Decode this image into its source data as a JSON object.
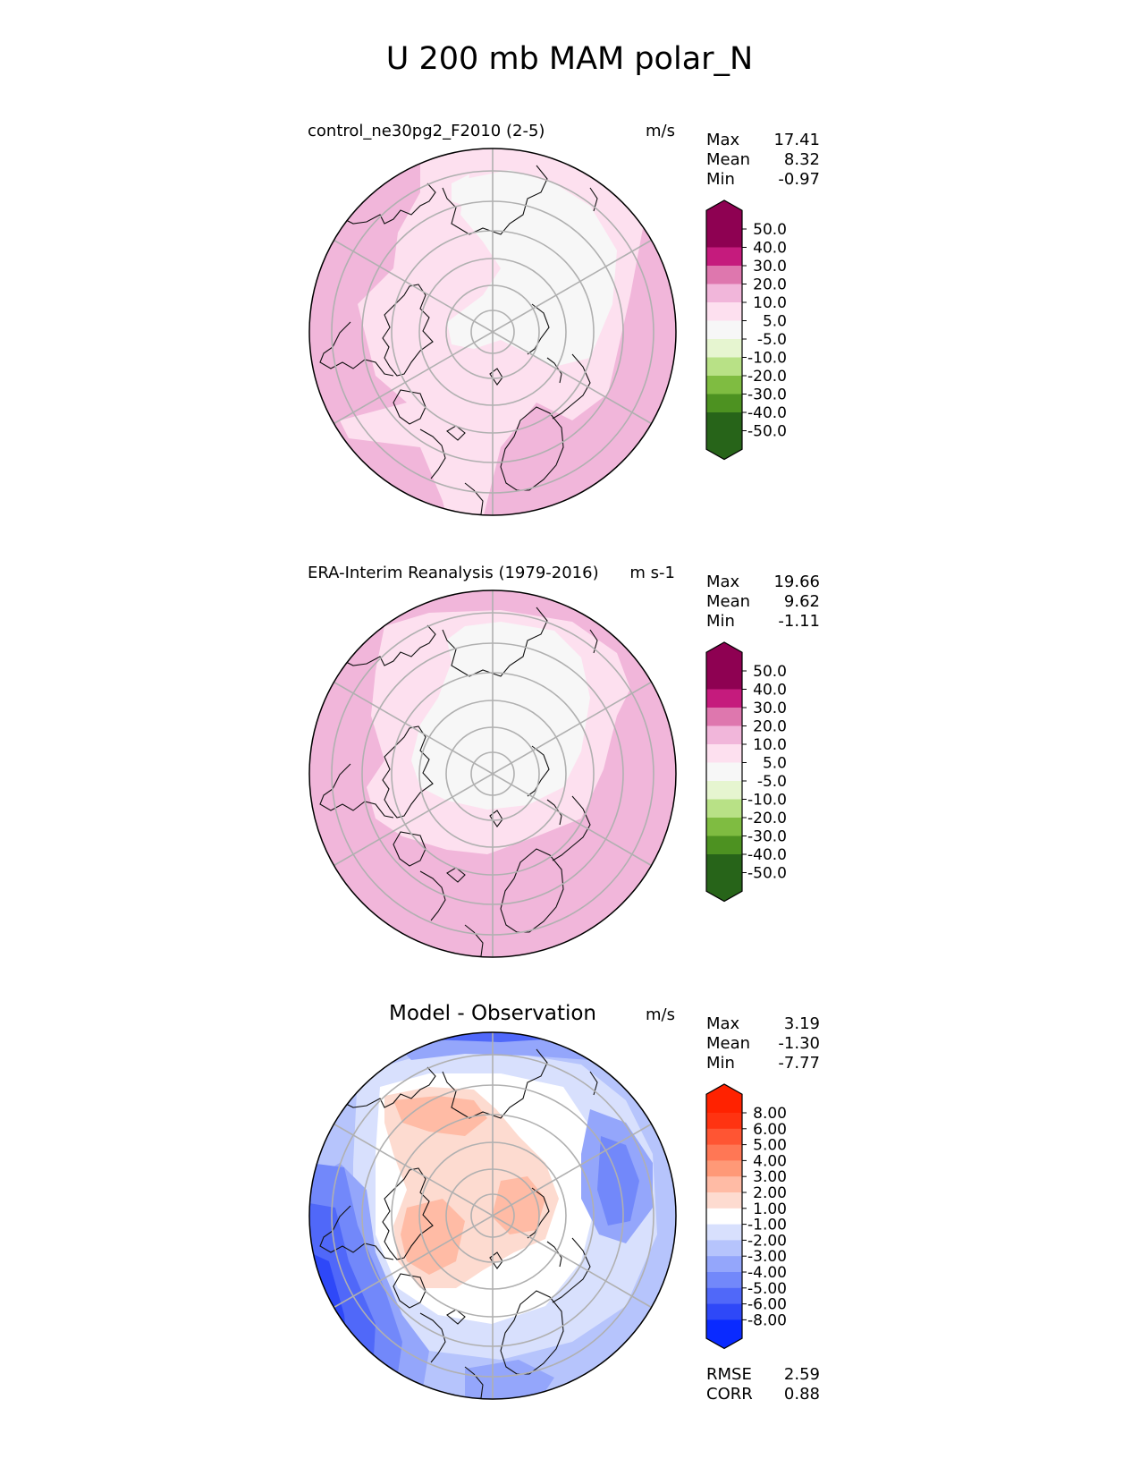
{
  "title": "U 200 mb MAM polar_N",
  "panels": [
    {
      "title": "control_ne30pg2_F2010 (2-5)",
      "units": "m/s",
      "stats": [
        {
          "label": "Max",
          "value": "17.41"
        },
        {
          "label": "Mean",
          "value": "8.32"
        },
        {
          "label": "Min",
          "value": "-0.97"
        }
      ],
      "colorbar": {
        "ticks": [
          "50.0",
          "40.0",
          "30.0",
          "20.0",
          "10.0",
          "5.0",
          "-5.0",
          "-10.0",
          "-20.0",
          "-30.0",
          "-40.0",
          "-50.0"
        ],
        "colors": [
          "#8e0152",
          "#c51b7d",
          "#de77ae",
          "#f1b6da",
          "#fde0ef",
          "#f7f7f7",
          "#e6f5d0",
          "#b8e186",
          "#7fbc41",
          "#4d9221",
          "#276419"
        ],
        "over": "#8e0152",
        "under": "#276419"
      }
    },
    {
      "title": "ERA-Interim Reanalysis (1979-2016)",
      "units": "m s-1",
      "stats": [
        {
          "label": "Max",
          "value": "19.66"
        },
        {
          "label": "Mean",
          "value": "9.62"
        },
        {
          "label": "Min",
          "value": "-1.11"
        }
      ],
      "colorbar": {
        "ticks": [
          "50.0",
          "40.0",
          "30.0",
          "20.0",
          "10.0",
          "5.0",
          "-5.0",
          "-10.0",
          "-20.0",
          "-30.0",
          "-40.0",
          "-50.0"
        ],
        "colors": [
          "#8e0152",
          "#c51b7d",
          "#de77ae",
          "#f1b6da",
          "#fde0ef",
          "#f7f7f7",
          "#e6f5d0",
          "#b8e186",
          "#7fbc41",
          "#4d9221",
          "#276419"
        ],
        "over": "#8e0152",
        "under": "#276419"
      }
    },
    {
      "title": "Model - Observation",
      "units": "m/s",
      "stats": [
        {
          "label": "Max",
          "value": "3.19"
        },
        {
          "label": "Mean",
          "value": "-1.30"
        },
        {
          "label": "Min",
          "value": "-7.77"
        }
      ],
      "extra_stats": [
        {
          "label": "RMSE",
          "value": "2.59"
        },
        {
          "label": "CORR",
          "value": "0.88"
        }
      ],
      "colorbar": {
        "ticks": [
          "8.00",
          "6.00",
          "5.00",
          "4.00",
          "3.00",
          "2.00",
          "1.00",
          "-1.00",
          "-2.00",
          "-3.00",
          "-4.00",
          "-5.00",
          "-6.00",
          "-8.00"
        ],
        "colors": [
          "#ff3311",
          "#ff5533",
          "#ff7755",
          "#ff9977",
          "#ffbba5",
          "#fddbd0",
          "#ffffff",
          "#d8e0fd",
          "#b6c4fc",
          "#94a6fb",
          "#7288fa",
          "#5068f9",
          "#2e48f8"
        ],
        "over": "#ff2200",
        "under": "#0a2aff"
      }
    }
  ],
  "chart_data": [
    {
      "type": "heatmap",
      "projection": "north-polar-stereographic",
      "title": "control_ne30pg2_F2010 (2-5)",
      "units": "m/s",
      "stats": {
        "max": 17.41,
        "mean": 8.32,
        "min": -0.97
      },
      "levels": [
        -50,
        -40,
        -30,
        -20,
        -10,
        -5,
        5,
        10,
        20,
        30,
        40,
        50
      ]
    },
    {
      "type": "heatmap",
      "projection": "north-polar-stereographic",
      "title": "ERA-Interim Reanalysis (1979-2016)",
      "units": "m s-1",
      "stats": {
        "max": 19.66,
        "mean": 9.62,
        "min": -1.11
      },
      "levels": [
        -50,
        -40,
        -30,
        -20,
        -10,
        -5,
        5,
        10,
        20,
        30,
        40,
        50
      ]
    },
    {
      "type": "heatmap",
      "projection": "north-polar-stereographic",
      "title": "Model - Observation",
      "units": "m/s",
      "stats": {
        "max": 3.19,
        "mean": -1.3,
        "min": -7.77,
        "rmse": 2.59,
        "corr": 0.88
      },
      "levels": [
        -8,
        -6,
        -5,
        -4,
        -3,
        -2,
        -1,
        1,
        2,
        3,
        4,
        5,
        6,
        8
      ]
    }
  ]
}
